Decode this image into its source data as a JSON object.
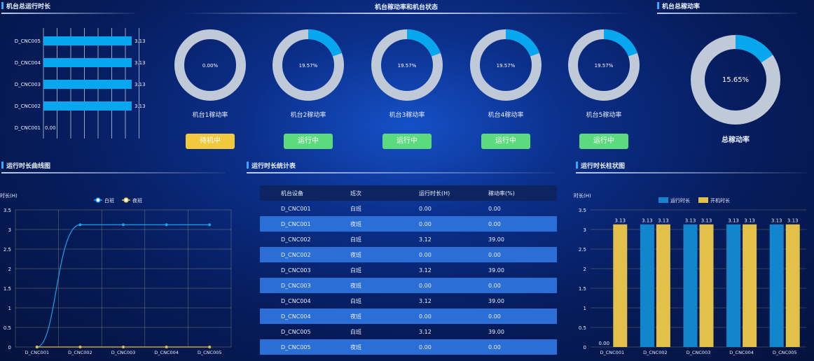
{
  "panels": {
    "total_runtime": "机台总运行时长",
    "util_status": "机台稼动率和机台状态",
    "total_util": "机台总稼动率",
    "runtime_curve": "运行时长曲线图",
    "runtime_table": "运行时长统计表",
    "runtime_bar": "运行时长柱状图"
  },
  "machines": [
    {
      "label": "机台1稼动率",
      "pct": "0.00%",
      "value": 0.0,
      "status": "待机中",
      "state": "wait"
    },
    {
      "label": "机台2稼动率",
      "pct": "19.57%",
      "value": 19.57,
      "status": "运行中",
      "state": "run"
    },
    {
      "label": "机台3稼动率",
      "pct": "19.57%",
      "value": 19.57,
      "status": "运行中",
      "state": "run"
    },
    {
      "label": "机台4稼动率",
      "pct": "19.57%",
      "value": 19.57,
      "status": "运行中",
      "state": "run"
    },
    {
      "label": "机台5稼动率",
      "pct": "19.57%",
      "value": 19.57,
      "status": "运行中",
      "state": "run"
    }
  ],
  "total": {
    "pct": "15.65%",
    "value": 15.65,
    "label": "总稼动率"
  },
  "table": {
    "headers": [
      "机台设备",
      "班次",
      "运行时长(H)",
      "稼动率(%)"
    ],
    "rows": [
      [
        "D_CNC001",
        "白班",
        "0.00",
        "0.00"
      ],
      [
        "D_CNC001",
        "夜班",
        "0.00",
        "0.00"
      ],
      [
        "D_CNC002",
        "白班",
        "3.12",
        "39.00"
      ],
      [
        "D_CNC002",
        "夜班",
        "0.00",
        "0.00"
      ],
      [
        "D_CNC003",
        "白班",
        "3.12",
        "39.00"
      ],
      [
        "D_CNC003",
        "夜班",
        "0.00",
        "0.00"
      ],
      [
        "D_CNC004",
        "白班",
        "3.12",
        "39.00"
      ],
      [
        "D_CNC004",
        "夜班",
        "0.00",
        "0.00"
      ],
      [
        "D_CNC005",
        "白班",
        "3.12",
        "39.00"
      ],
      [
        "D_CNC005",
        "夜班",
        "0.00",
        "0.00"
      ]
    ]
  },
  "colors": {
    "accent": "#06a7ee",
    "ring": "#bfc9d8",
    "yellow": "#e3c04a",
    "blue_bar": "#1186cc",
    "wait": "#f0c93e",
    "run": "#5bdb7d"
  },
  "chart_data": [
    {
      "type": "bar",
      "orientation": "horizontal",
      "categories": [
        "D_CNC005",
        "D_CNC004",
        "D_CNC003",
        "D_CNC002",
        "D_CNC001"
      ],
      "values": [
        3.13,
        3.13,
        3.13,
        3.13,
        0.0
      ],
      "value_labels": [
        "3.13",
        "3.13",
        "3.13",
        "3.13",
        "0.00"
      ],
      "grid": true
    },
    {
      "type": "line",
      "ylabel": "时长(H)",
      "ylim": [
        0,
        3.5
      ],
      "yticks": [
        "0",
        "0.5",
        "1",
        "1.5",
        "2",
        "2.5",
        "3",
        "3.5"
      ],
      "categories": [
        "D_CNC001",
        "D_CNC002",
        "D_CNC003",
        "D_CNC004",
        "D_CNC005"
      ],
      "series": [
        {
          "name": "白班",
          "values": [
            0,
            3.12,
            3.12,
            3.12,
            3.12
          ],
          "color": "#1aa3e8"
        },
        {
          "name": "夜班",
          "values": [
            0,
            0,
            0,
            0,
            0
          ],
          "color": "#e3c04a"
        }
      ],
      "legend": "top-center",
      "grid": true
    },
    {
      "type": "bar",
      "ylabel": "时长(H)",
      "ylim": [
        0,
        3.5
      ],
      "yticks": [
        "0",
        "0.5",
        "1",
        "1.5",
        "2",
        "2.5",
        "3",
        "3.5"
      ],
      "categories": [
        "D_CNC001",
        "D_CNC002",
        "D_CNC003",
        "D_CNC004",
        "D_CNC005"
      ],
      "series": [
        {
          "name": "运行时长",
          "values": [
            0,
            3.13,
            3.13,
            3.13,
            3.13
          ],
          "labels": [
            "0.00",
            "3.13",
            "3.13",
            "3.13",
            "3.13"
          ],
          "color": "#1186cc"
        },
        {
          "name": "开机时长",
          "values": [
            3.13,
            3.13,
            3.13,
            3.13,
            3.13
          ],
          "labels": [
            "3.13",
            "3.13",
            "3.13",
            "3.13",
            "3.13"
          ],
          "color": "#e3c04a"
        }
      ],
      "legend": "top-center",
      "grid": true
    }
  ]
}
